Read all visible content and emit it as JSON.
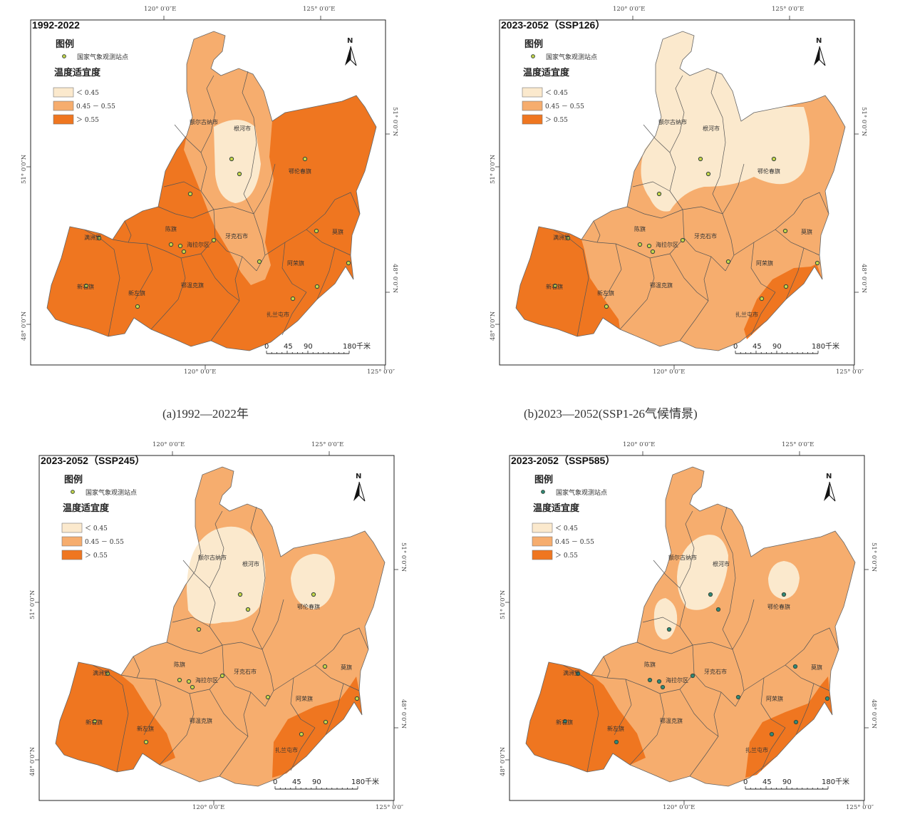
{
  "colors": {
    "low": "#fbe9cd",
    "mid": "#f6ad6e",
    "high": "#ef7620",
    "border": "#555555",
    "station_outer": "#3a4a3a",
    "station_inner_default": "#c8d84a",
    "station_inner_alt": "#2e8b7a"
  },
  "legend": {
    "title": "图例",
    "station_label": "国家气象观测站点",
    "suitability_title": "温度适宜度",
    "classes": [
      "＜ 0.45",
      "0.45 － 0.55",
      "＞ 0.55"
    ]
  },
  "axis_labels": {
    "lon_120": "120° 0′0″E",
    "lon_125": "125° 0′0″E",
    "lon_125_bottom": "125° 0′0″",
    "lat_51": "51° 0′0″N",
    "lat_48": "48° 0′0″N"
  },
  "north_label": "N",
  "scale_bar": {
    "ticks": [
      "0",
      "45",
      "90",
      "180"
    ],
    "unit": "千米"
  },
  "place_names": {
    "genhe": "根河市",
    "eerguna": "额尔古纳市",
    "elunchun": "鄂伦春旗",
    "chenqi": "陈旗",
    "hailaer": "海拉尔区",
    "yakeshi": "牙克石市",
    "manzhouli": "满洲里",
    "xinyouqi": "新右旗",
    "xinzuoqi": "新左旗",
    "ewenkeqi": "鄂温克旗",
    "arongqi": "阿荣旗",
    "moqi": "莫旗",
    "zhalantun": "扎兰屯市"
  },
  "panels": [
    {
      "id": "a",
      "title": "1992-2022",
      "caption": "(a)1992—2022年",
      "station_inner": "default"
    },
    {
      "id": "b",
      "title": "2023-2052（SSP126）",
      "caption": "(b)2023—2052(SSP1-26气候情景)",
      "station_inner": "default"
    },
    {
      "id": "c",
      "title": "2023-2052（SSP245）",
      "caption": "",
      "station_inner": "default"
    },
    {
      "id": "d",
      "title": "2023-2052（SSP585）",
      "caption": "",
      "station_inner": "alt"
    }
  ]
}
